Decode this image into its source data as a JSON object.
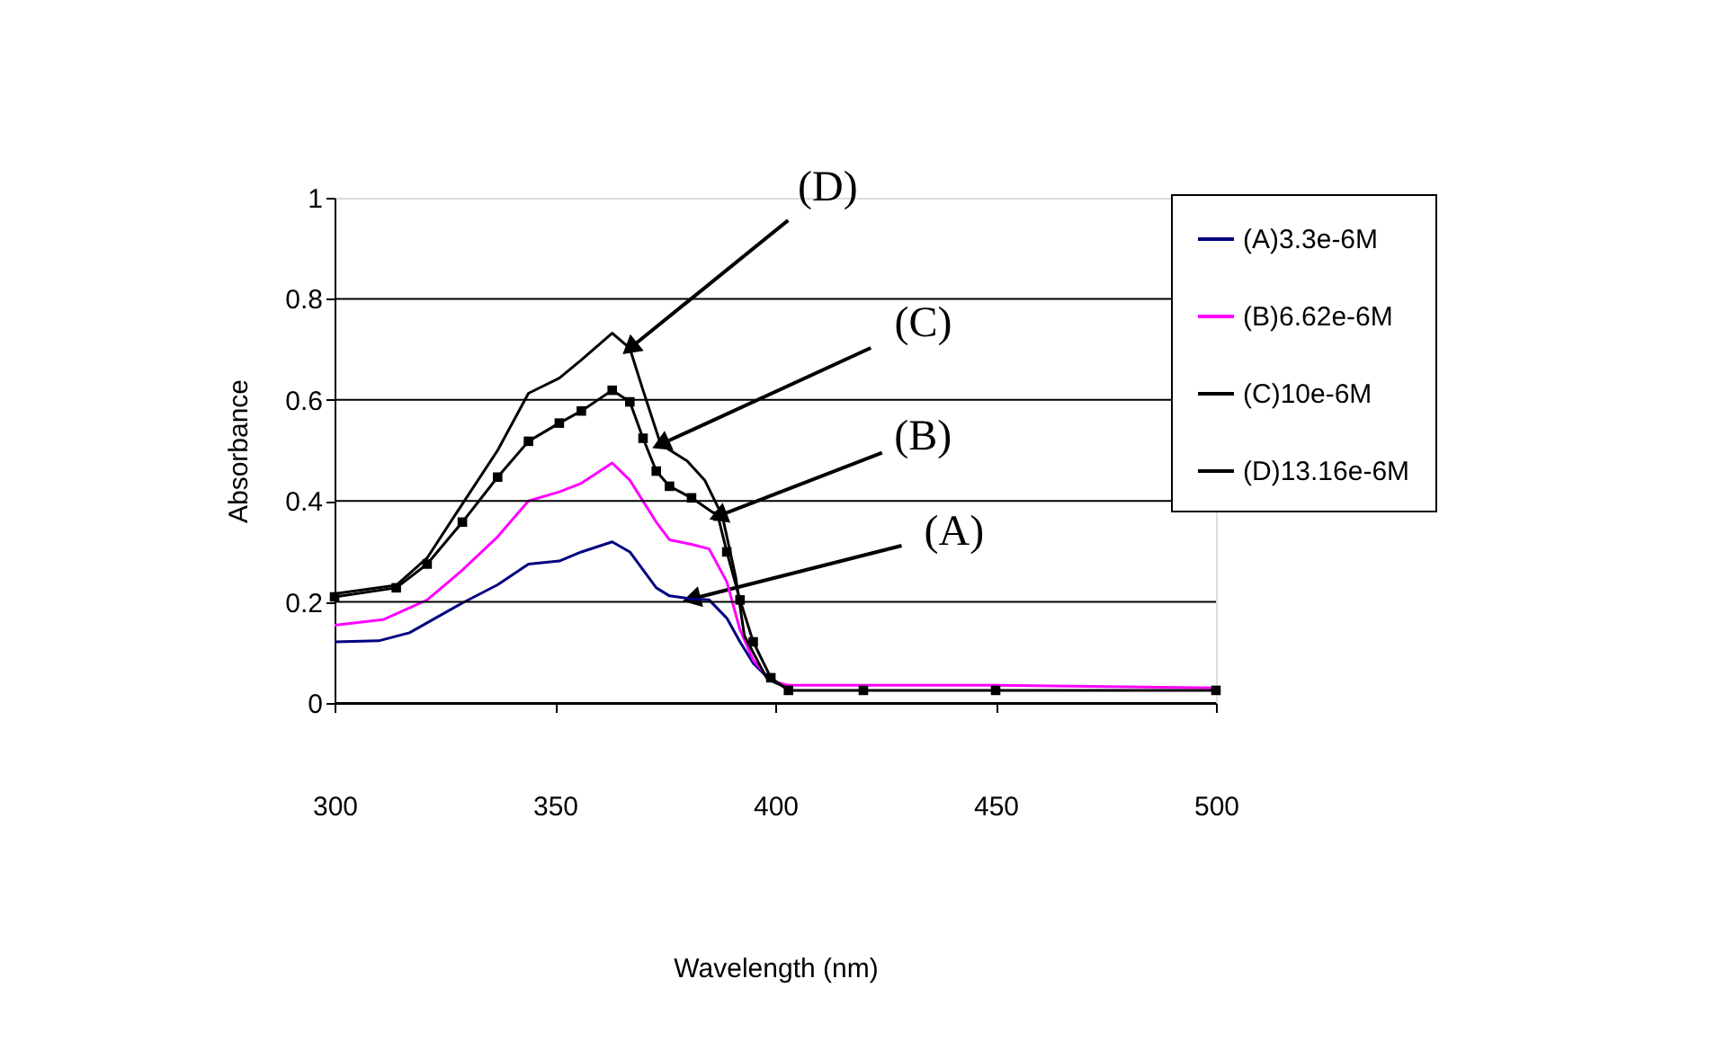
{
  "chart_data": {
    "type": "line",
    "xlabel": "Wavelength (nm)",
    "ylabel": "Absorbance",
    "xlim": [
      300,
      500
    ],
    "xticks": [
      300,
      350,
      400,
      450,
      500
    ],
    "ylim": [
      0,
      1
    ],
    "yticks": [
      0,
      0.2,
      0.4,
      0.6,
      0.8,
      1
    ],
    "grid": "y",
    "legend": "right",
    "line_style": "solid",
    "series": [
      {
        "name": "(A)3.3e-6M",
        "color": "#000080",
        "marker": "none",
        "x": [
          300,
          310,
          317,
          329,
          337,
          344,
          351,
          356,
          363,
          367,
          373,
          376,
          381,
          385,
          389,
          392,
          395,
          399,
          403
        ],
        "values": [
          0.121,
          0.123,
          0.139,
          0.198,
          0.234,
          0.275,
          0.281,
          0.299,
          0.319,
          0.299,
          0.228,
          0.212,
          0.206,
          0.204,
          0.168,
          0.121,
          0.079,
          0.044,
          0.03
        ]
      },
      {
        "name": "(B)6.62e-6M",
        "color": "#ff00ff",
        "marker": "none",
        "x": [
          300,
          311,
          321,
          329,
          337,
          344,
          351,
          356,
          363,
          367,
          373,
          376,
          381,
          385,
          389,
          392,
          395,
          399,
          403,
          420,
          450,
          500
        ],
        "values": [
          0.154,
          0.165,
          0.204,
          0.263,
          0.329,
          0.4,
          0.418,
          0.435,
          0.475,
          0.441,
          0.358,
          0.323,
          0.314,
          0.305,
          0.24,
          0.145,
          0.085,
          0.044,
          0.035,
          0.035,
          0.035,
          0.03
        ]
      },
      {
        "name": "(C)10e-6M",
        "color": "#000000",
        "marker": "square",
        "x": [
          300,
          314,
          321,
          329,
          337,
          344,
          351,
          356,
          363,
          367,
          370,
          373,
          376,
          381,
          387,
          389,
          392,
          395,
          399,
          403,
          420,
          450,
          500
        ],
        "values": [
          0.21,
          0.228,
          0.275,
          0.358,
          0.447,
          0.518,
          0.554,
          0.578,
          0.619,
          0.596,
          0.524,
          0.459,
          0.429,
          0.406,
          0.37,
          0.299,
          0.204,
          0.121,
          0.05,
          0.025,
          0.025,
          0.025,
          0.025
        ]
      },
      {
        "name": "(D)13.16e-6M",
        "color": "#000000",
        "marker": "none",
        "x": [
          300,
          314,
          321,
          329,
          337,
          344,
          351,
          356,
          363,
          367,
          370,
          374,
          380,
          384,
          388,
          391,
          393,
          398,
          402
        ],
        "values": [
          0.216,
          0.233,
          0.287,
          0.394,
          0.5,
          0.613,
          0.643,
          0.679,
          0.732,
          0.702,
          0.619,
          0.512,
          0.479,
          0.441,
          0.37,
          0.25,
          0.133,
          0.05,
          0.032
        ]
      }
    ],
    "annotations": [
      {
        "text": "(D)",
        "x": 367,
        "y": 0.702
      },
      {
        "text": "(C)",
        "x": 374,
        "y": 0.512
      },
      {
        "text": "(B)",
        "x": 387,
        "y": 0.37
      },
      {
        "text": "(A)",
        "x": 381,
        "y": 0.206
      }
    ]
  }
}
